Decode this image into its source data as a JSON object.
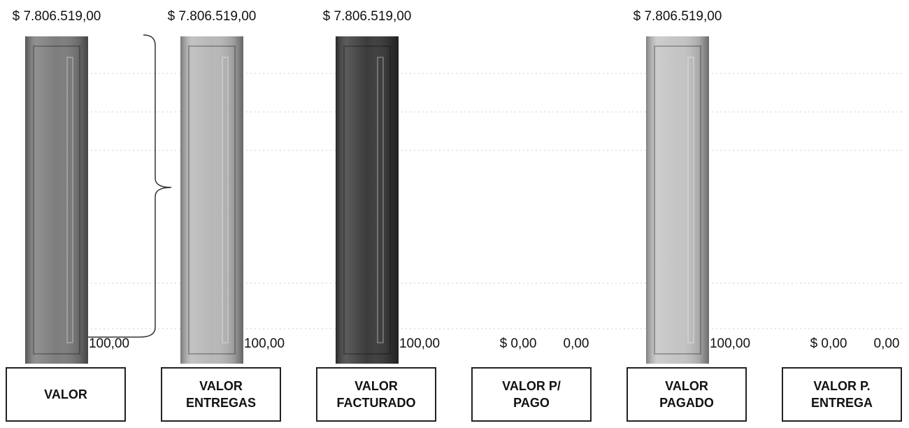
{
  "chart_data": {
    "type": "bar",
    "categories": [
      "VALOR",
      "VALOR ENTREGAS",
      "VALOR FACTURADO",
      "VALOR P/ PAGO",
      "VALOR PAGADO",
      "VALOR P. ENTREGA"
    ],
    "values": [
      7806519,
      7806519,
      7806519,
      0,
      7806519,
      0
    ],
    "value_labels": [
      "$ 7.806.519,00",
      "$ 7.806.519,00",
      "$ 7.806.519,00",
      "$ 0,00",
      "$ 7.806.519,00",
      "$ 0,00"
    ],
    "percent_values": [
      100,
      100,
      100,
      0,
      100,
      0
    ],
    "percent_labels": [
      "100,00",
      "100,00",
      "100,00",
      "0,00",
      "100,00",
      "0,00"
    ],
    "colors": [
      "#7d7d7d",
      "#b8b8b8",
      "#3c3c3c",
      "#999999",
      "#c4c4c4",
      "#999999"
    ]
  }
}
